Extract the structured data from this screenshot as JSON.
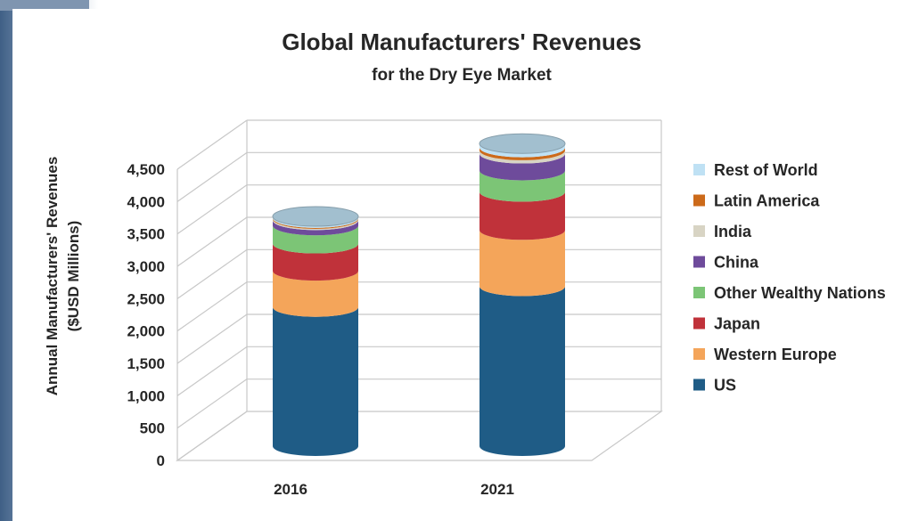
{
  "chart_data": {
    "type": "bar",
    "stacked": true,
    "style": "3d-cylinder",
    "title": "Global Manufacturers' Revenues",
    "subtitle": "for the Dry Eye Market",
    "xlabel": "",
    "ylabel_line1": "Annual Manufacturers' Revenues",
    "ylabel_line2": "($USD Millions)",
    "ylim": [
      0,
      4500
    ],
    "yticks": [
      0,
      500,
      1000,
      1500,
      2000,
      2500,
      3000,
      3500,
      4000,
      4500
    ],
    "ytick_labels": [
      "0",
      "500",
      "1,000",
      "1,500",
      "2,000",
      "2,500",
      "3,000",
      "3,500",
      "4,000",
      "4,500"
    ],
    "grid": true,
    "legend_position": "right",
    "categories": [
      "2016",
      "2021"
    ],
    "series": [
      {
        "name": "US",
        "color": "#1f5c86",
        "values": [
          2150,
          2470
        ]
      },
      {
        "name": "Western Europe",
        "color": "#f4a55a",
        "values": [
          560,
          870
        ]
      },
      {
        "name": "Japan",
        "color": "#c0323a",
        "values": [
          420,
          590
        ]
      },
      {
        "name": "Other Wealthy Nations",
        "color": "#7cc576",
        "values": [
          280,
          330
        ]
      },
      {
        "name": "China",
        "color": "#6e4b9b",
        "values": [
          80,
          260
        ]
      },
      {
        "name": "India",
        "color": "#d8d4c4",
        "values": [
          20,
          50
        ]
      },
      {
        "name": "Latin America",
        "color": "#cc6a1a",
        "values": [
          15,
          45
        ]
      },
      {
        "name": "Rest of World",
        "color": "#bfe1f4",
        "values": [
          25,
          60
        ]
      }
    ]
  }
}
